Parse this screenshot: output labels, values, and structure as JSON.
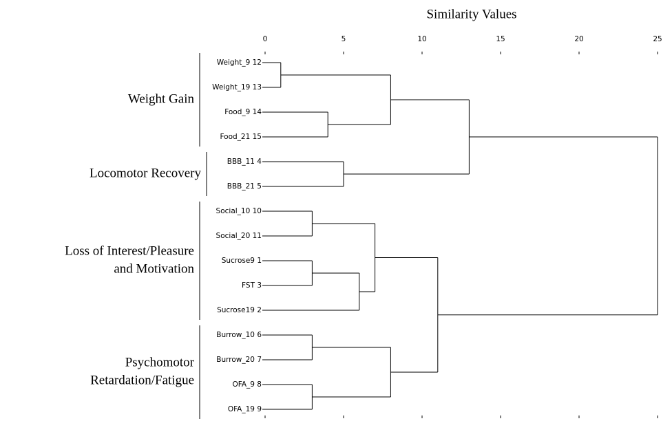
{
  "chart_data": {
    "type": "dendrogram",
    "title": "Similarity Values",
    "xlim": [
      0,
      25
    ],
    "xticks": [
      0,
      5,
      10,
      15,
      20,
      25
    ],
    "groups": [
      {
        "label": [
          "Weight Gain"
        ],
        "leaves": [
          "Weight_9 12",
          "Weight_19 13",
          "Food_9 14",
          "Food_21 15"
        ]
      },
      {
        "label": [
          "Locomotor Recovery"
        ],
        "leaves": [
          "BBB_11 4",
          "BBB_21 5"
        ]
      },
      {
        "label": [
          "Loss of Interest/Pleasure",
          "and Motivation"
        ],
        "leaves": [
          "Social_10 10",
          "Social_20 11",
          "Sucrose9 1",
          "FST 3",
          "Sucrose19 2"
        ]
      },
      {
        "label": [
          "Psychomotor",
          "Retardation/Fatigue"
        ],
        "leaves": [
          "Burrow_10 6",
          "Burrow_20 7",
          "OFA_9 8",
          "OFA_19 9"
        ]
      }
    ],
    "tree": {
      "height": 25,
      "bold": false,
      "children": [
        {
          "height": 13,
          "bold": true,
          "children": [
            {
              "height": 8,
              "bold": true,
              "children": [
                {
                  "height": 1,
                  "bold": true,
                  "children": [
                    null,
                    null
                  ]
                },
                {
                  "height": 4,
                  "bold": true,
                  "children": [
                    null,
                    null
                  ]
                }
              ]
            },
            {
              "height": 5,
              "bold": true,
              "children": [
                null,
                null
              ]
            }
          ]
        },
        {
          "height": 11,
          "bold": true,
          "children": [
            {
              "height": 7,
              "bold": false,
              "children": [
                {
                  "height": 3,
                  "bold": false,
                  "children": [
                    null,
                    null
                  ]
                },
                {
                  "height": 6,
                  "bold": true,
                  "children": [
                    {
                      "height": 3,
                      "bold": true,
                      "children": [
                        null,
                        null
                      ]
                    },
                    null
                  ]
                }
              ]
            },
            {
              "height": 8,
              "bold": true,
              "children": [
                {
                  "height": 3,
                  "bold": true,
                  "children": [
                    null,
                    null
                  ]
                },
                {
                  "height": 3,
                  "bold": true,
                  "children": [
                    null,
                    null
                  ]
                }
              ]
            }
          ]
        }
      ]
    }
  }
}
